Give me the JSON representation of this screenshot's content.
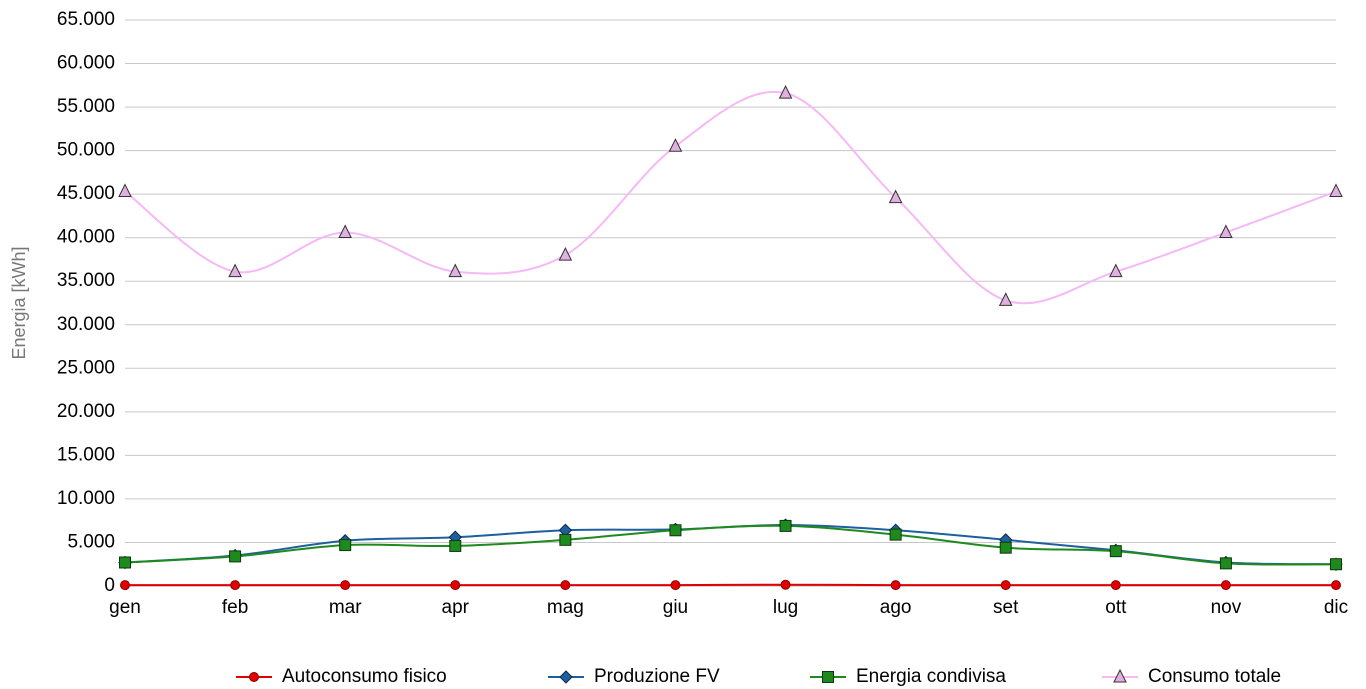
{
  "chart_data": {
    "type": "line",
    "y_label": "Energia [kWh]",
    "categories": [
      "gen",
      "feb",
      "mar",
      "apr",
      "mag",
      "giu",
      "lug",
      "ago",
      "set",
      "ott",
      "nov",
      "dic"
    ],
    "series": [
      {
        "name": "Autoconsumo fisico",
        "color": "#e00000",
        "marker": "circle",
        "values": [
          100,
          100,
          100,
          100,
          100,
          100,
          150,
          100,
          100,
          100,
          100,
          100
        ]
      },
      {
        "name": "Produzione FV",
        "color": "#1f5fa0",
        "marker": "diamond",
        "values": [
          2700,
          3500,
          5200,
          5600,
          6400,
          6500,
          7000,
          6400,
          5300,
          4100,
          2700,
          2500
        ]
      },
      {
        "name": "Energia condivisa",
        "color": "#1e8a1e",
        "marker": "square",
        "values": [
          2700,
          3400,
          4700,
          4600,
          5300,
          6400,
          6900,
          5900,
          4400,
          4000,
          2600,
          2500
        ]
      },
      {
        "name": "Consumo totale",
        "color": "#f6b8f6",
        "marker": "triangle",
        "values": [
          45300,
          36100,
          40600,
          36100,
          38000,
          50500,
          56600,
          44600,
          32800,
          36100,
          40600,
          45300
        ]
      }
    ],
    "ylim": [
      0,
      65000
    ],
    "yticks": [
      0,
      {
        "value": 5000,
        "label": "5.000"
      },
      {
        "value": 10000,
        "label": "10.000"
      },
      {
        "value": 15000,
        "label": "15.000"
      },
      {
        "value": 20000,
        "label": "20.000"
      },
      {
        "value": 25000,
        "label": "25.000"
      },
      {
        "value": 30000,
        "label": "30.000"
      },
      {
        "value": 35000,
        "label": "35.000"
      },
      {
        "value": 40000,
        "label": "40.000"
      },
      {
        "value": 45000,
        "label": "45.000"
      },
      {
        "value": 50000,
        "label": "50.000"
      },
      {
        "value": 55000,
        "label": "55.000"
      },
      {
        "value": 60000,
        "label": "60.000"
      },
      {
        "value": 65000,
        "label": "65.000"
      }
    ],
    "grid": true,
    "smooth": true,
    "legend": "bottom"
  }
}
